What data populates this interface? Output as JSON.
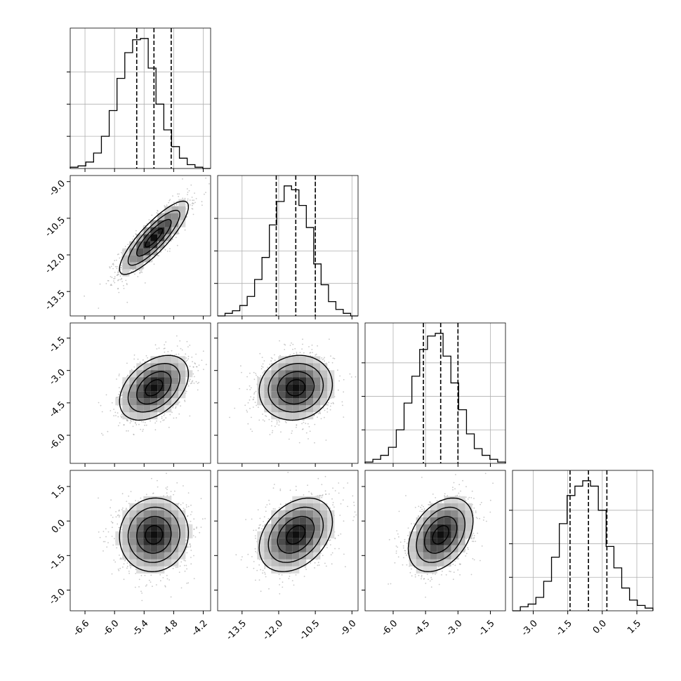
{
  "chart_data": {
    "type": "corner",
    "parameters": [
      {
        "range": [
          -6.9,
          -4.05
        ],
        "ticks": [
          "-6.6",
          "-6.0",
          "-5.4",
          "-4.8",
          "-4.2"
        ],
        "quantiles": [
          -5.55,
          -5.2,
          -4.85
        ]
      },
      {
        "range": [
          -14.5,
          -8.75
        ],
        "ticks": [
          "-13.5",
          "-12.0",
          "-10.5",
          "-9.0"
        ],
        "quantiles": [
          -12.1,
          -11.3,
          -10.5
        ]
      },
      {
        "range": [
          -7.3,
          -0.8
        ],
        "ticks": [
          "-6.0",
          "-4.5",
          "-3.0",
          "-1.5"
        ],
        "quantiles": [
          -4.6,
          -3.8,
          -3.0
        ]
      },
      {
        "range": [
          -3.9,
          2.2
        ],
        "ticks": [
          "-3.0",
          "-1.5",
          "0.0",
          "1.5"
        ],
        "quantiles": [
          -1.4,
          -0.6,
          0.2
        ]
      }
    ],
    "histograms": [
      {
        "param": 0,
        "counts": [
          1,
          2,
          5,
          12,
          25,
          45,
          70,
          90,
          100,
          101,
          78,
          50,
          30,
          17,
          8,
          3,
          1,
          0
        ]
      },
      {
        "param": 1,
        "counts": [
          0,
          2,
          4,
          8,
          15,
          28,
          45,
          70,
          88,
          100,
          97,
          85,
          68,
          40,
          24,
          11,
          5,
          2,
          0
        ]
      },
      {
        "param": 2,
        "counts": [
          1,
          3,
          6,
          12,
          25,
          45,
          65,
          85,
          95,
          97,
          80,
          60,
          40,
          22,
          11,
          6,
          3,
          1
        ]
      },
      {
        "param": 3,
        "counts": [
          0,
          3,
          5,
          10,
          22,
          40,
          65,
          86,
          93,
          97,
          93,
          75,
          48,
          32,
          17,
          8,
          4,
          2
        ]
      }
    ],
    "panels_2d": [
      {
        "x": 0,
        "y": 1,
        "mean": [
          -5.2,
          -11.3
        ],
        "sigma": [
          0.35,
          0.75
        ],
        "rho": 0.85
      },
      {
        "x": 0,
        "y": 2,
        "mean": [
          -5.2,
          -3.8
        ],
        "sigma": [
          0.35,
          0.75
        ],
        "rho": 0.42
      },
      {
        "x": 1,
        "y": 2,
        "mean": [
          -11.3,
          -3.8
        ],
        "sigma": [
          0.75,
          0.75
        ],
        "rho": 0.1
      },
      {
        "x": 0,
        "y": 3,
        "mean": [
          -5.2,
          -0.6
        ],
        "sigma": [
          0.35,
          0.8
        ],
        "rho": 0.05
      },
      {
        "x": 1,
        "y": 3,
        "mean": [
          -11.3,
          -0.6
        ],
        "sigma": [
          0.75,
          0.8
        ],
        "rho": 0.35
      },
      {
        "x": 2,
        "y": 3,
        "mean": [
          -3.8,
          -0.6
        ],
        "sigma": [
          0.75,
          0.8
        ],
        "rho": 0.38
      }
    ],
    "grid": true,
    "axis_labels": []
  }
}
